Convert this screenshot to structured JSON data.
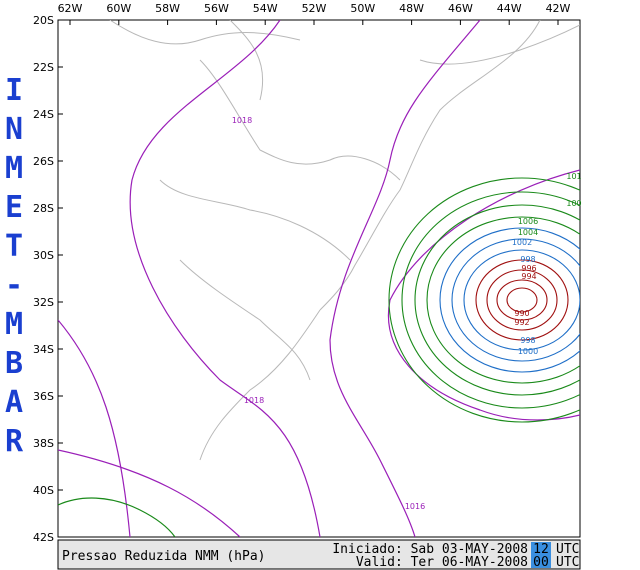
{
  "side_label": [
    "I",
    "N",
    "M",
    "E",
    "T",
    "-",
    "M",
    "B",
    "A",
    "R"
  ],
  "lon_labels": [
    "62W",
    "60W",
    "58W",
    "56W",
    "54W",
    "52W",
    "50W",
    "48W",
    "46W",
    "44W",
    "42W"
  ],
  "lat_labels": [
    "20S",
    "22S",
    "24S",
    "26S",
    "28S",
    "30S",
    "32S",
    "34S",
    "36S",
    "38S",
    "40S",
    "42S"
  ],
  "contour_labels": [
    "1018",
    "1018",
    "1016",
    "101",
    "100",
    "1006",
    "1004",
    "1002",
    "998",
    "996",
    "994",
    "990",
    "992",
    "998",
    "1000"
  ],
  "footer": {
    "title": "Pressao Reduzida NMM (hPa)",
    "initiated": {
      "text": "Iniciado: Sab 03-MAY-2008",
      "hour": "12",
      "unit": "UTC"
    },
    "valid": {
      "text": "Valid: Ter 06-MAY-2008",
      "hour": "00",
      "unit": "UTC"
    }
  }
}
